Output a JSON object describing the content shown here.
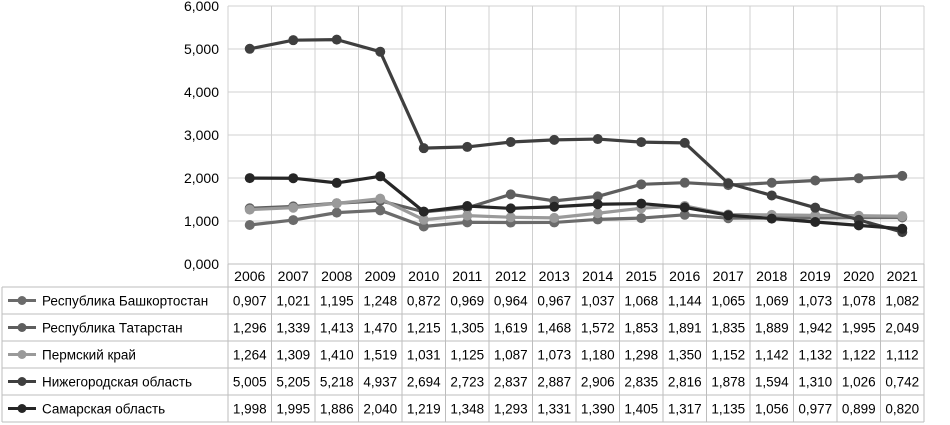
{
  "chart_data": {
    "type": "line",
    "title": "",
    "xlabel": "",
    "ylabel": "",
    "ylim": [
      0,
      6
    ],
    "yticks": [
      "0,000",
      "1,000",
      "2,000",
      "3,000",
      "4,000",
      "5,000",
      "6,000"
    ],
    "grid": true,
    "legend": "data-table-below",
    "categories": [
      "2006",
      "2007",
      "2008",
      "2009",
      "2010",
      "2011",
      "2012",
      "2013",
      "2014",
      "2015",
      "2016",
      "2017",
      "2018",
      "2019",
      "2020",
      "2021"
    ],
    "series": [
      {
        "name": "Республика Башкортостан",
        "color": "#6b6b6b",
        "values": [
          0.907,
          1.021,
          1.195,
          1.248,
          0.872,
          0.969,
          0.964,
          0.967,
          1.037,
          1.068,
          1.144,
          1.065,
          1.069,
          1.073,
          1.078,
          1.082
        ],
        "labels": [
          "0,907",
          "1,021",
          "1,195",
          "1,248",
          "0,872",
          "0,969",
          "0,964",
          "0,967",
          "1,037",
          "1,068",
          "1,144",
          "1,065",
          "1,069",
          "1,073",
          "1,078",
          "1,082"
        ]
      },
      {
        "name": "Республика Татарстан",
        "color": "#5e5e5e",
        "values": [
          1.296,
          1.339,
          1.413,
          1.47,
          1.215,
          1.305,
          1.619,
          1.468,
          1.572,
          1.853,
          1.891,
          1.835,
          1.889,
          1.942,
          1.995,
          2.049
        ],
        "labels": [
          "1,296",
          "1,339",
          "1,413",
          "1,470",
          "1,215",
          "1,305",
          "1,619",
          "1,468",
          "1,572",
          "1,853",
          "1,891",
          "1,835",
          "1,889",
          "1,942",
          "1,995",
          "2,049"
        ]
      },
      {
        "name": "Пермский край",
        "color": "#9a9a9a",
        "values": [
          1.264,
          1.309,
          1.41,
          1.519,
          1.031,
          1.125,
          1.087,
          1.073,
          1.18,
          1.298,
          1.35,
          1.152,
          1.142,
          1.132,
          1.122,
          1.112
        ],
        "labels": [
          "1,264",
          "1,309",
          "1,410",
          "1,519",
          "1,031",
          "1,125",
          "1,087",
          "1,073",
          "1,180",
          "1,298",
          "1,350",
          "1,152",
          "1,142",
          "1,132",
          "1,122",
          "1,112"
        ]
      },
      {
        "name": "Нижегородская область",
        "color": "#3f3f3f",
        "values": [
          5.005,
          5.205,
          5.218,
          4.937,
          2.694,
          2.723,
          2.837,
          2.887,
          2.906,
          2.835,
          2.816,
          1.878,
          1.594,
          1.31,
          1.026,
          0.742
        ],
        "labels": [
          "5,005",
          "5,205",
          "5,218",
          "4,937",
          "2,694",
          "2,723",
          "2,837",
          "2,887",
          "2,906",
          "2,835",
          "2,816",
          "1,878",
          "1,594",
          "1,310",
          "1,026",
          "0,742"
        ]
      },
      {
        "name": "Самарская область",
        "color": "#262626",
        "values": [
          1.998,
          1.995,
          1.886,
          2.04,
          1.219,
          1.348,
          1.293,
          1.331,
          1.39,
          1.405,
          1.317,
          1.135,
          1.056,
          0.977,
          0.899,
          0.82
        ],
        "labels": [
          "1,998",
          "1,995",
          "1,886",
          "2,040",
          "1,219",
          "1,348",
          "1,293",
          "1,331",
          "1,390",
          "1,405",
          "1,317",
          "1,135",
          "1,056",
          "0,977",
          "0,899",
          "0,820"
        ]
      }
    ]
  }
}
